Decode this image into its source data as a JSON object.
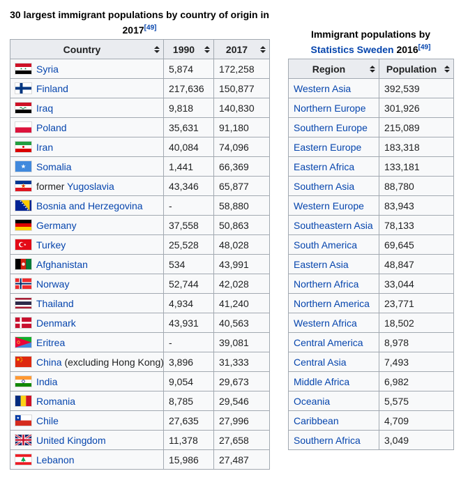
{
  "colors": {
    "link": "#0645ad",
    "text": "#202122",
    "table_border": "#a2a9b1",
    "header_bg": "#eaecf0",
    "cell_bg": "#f8f9fa",
    "page_bg": "#ffffff"
  },
  "left_table": {
    "caption_text": "30 largest immigrant populations by country of origin in 2017",
    "caption_ref": "[49]",
    "headers": [
      "Country",
      "1990",
      "2017"
    ],
    "rows": [
      {
        "flag": "syria",
        "prefix": "",
        "country": "Syria",
        "suffix": "",
        "y1990": "5,874",
        "y2017": "172,258"
      },
      {
        "flag": "finland",
        "prefix": "",
        "country": "Finland",
        "suffix": "",
        "y1990": "217,636",
        "y2017": "150,877"
      },
      {
        "flag": "iraq",
        "prefix": "",
        "country": "Iraq",
        "suffix": "",
        "y1990": "9,818",
        "y2017": "140,830"
      },
      {
        "flag": "poland",
        "prefix": "",
        "country": "Poland",
        "suffix": "",
        "y1990": "35,631",
        "y2017": "91,180"
      },
      {
        "flag": "iran",
        "prefix": "",
        "country": "Iran",
        "suffix": "",
        "y1990": "40,084",
        "y2017": "74,096"
      },
      {
        "flag": "somalia",
        "prefix": "",
        "country": "Somalia",
        "suffix": "",
        "y1990": "1,441",
        "y2017": "66,369"
      },
      {
        "flag": "yugoslavia",
        "prefix": "former ",
        "country": "Yugoslavia",
        "suffix": "",
        "y1990": "43,346",
        "y2017": "65,877"
      },
      {
        "flag": "bosnia",
        "prefix": "",
        "country": "Bosnia and Herzegovina",
        "suffix": "",
        "y1990": "-",
        "y2017": "58,880"
      },
      {
        "flag": "germany",
        "prefix": "",
        "country": "Germany",
        "suffix": "",
        "y1990": "37,558",
        "y2017": "50,863"
      },
      {
        "flag": "turkey",
        "prefix": "",
        "country": "Turkey",
        "suffix": "",
        "y1990": "25,528",
        "y2017": "48,028"
      },
      {
        "flag": "afghanistan",
        "prefix": "",
        "country": "Afghanistan",
        "suffix": "",
        "y1990": "534",
        "y2017": "43,991"
      },
      {
        "flag": "norway",
        "prefix": "",
        "country": "Norway",
        "suffix": "",
        "y1990": "52,744",
        "y2017": "42,028"
      },
      {
        "flag": "thailand",
        "prefix": "",
        "country": "Thailand",
        "suffix": "",
        "y1990": "4,934",
        "y2017": "41,240"
      },
      {
        "flag": "denmark",
        "prefix": "",
        "country": "Denmark",
        "suffix": "",
        "y1990": "43,931",
        "y2017": "40,563"
      },
      {
        "flag": "eritrea",
        "prefix": "",
        "country": "Eritrea",
        "suffix": "",
        "y1990": "-",
        "y2017": "39,081"
      },
      {
        "flag": "china",
        "prefix": "",
        "country": "China",
        "suffix": " (excluding Hong Kong)",
        "y1990": "3,896",
        "y2017": "31,333"
      },
      {
        "flag": "india",
        "prefix": "",
        "country": "India",
        "suffix": "",
        "y1990": "9,054",
        "y2017": "29,673"
      },
      {
        "flag": "romania",
        "prefix": "",
        "country": "Romania",
        "suffix": "",
        "y1990": "8,785",
        "y2017": "29,546"
      },
      {
        "flag": "chile",
        "prefix": "",
        "country": "Chile",
        "suffix": "",
        "y1990": "27,635",
        "y2017": "27,996"
      },
      {
        "flag": "uk",
        "prefix": "",
        "country": "United Kingdom",
        "suffix": "",
        "y1990": "11,378",
        "y2017": "27,658"
      },
      {
        "flag": "lebanon",
        "prefix": "",
        "country": "Lebanon",
        "suffix": "",
        "y1990": "15,986",
        "y2017": "27,487"
      }
    ]
  },
  "right_table": {
    "caption_prefix": "Immigrant populations by ",
    "caption_link": "Statistics Sweden",
    "caption_suffix": " 2016",
    "caption_ref": "[49]",
    "headers": [
      "Region",
      "Population"
    ],
    "rows": [
      {
        "region": "Western Asia",
        "population": "392,539"
      },
      {
        "region": "Northern Europe",
        "population": "301,926"
      },
      {
        "region": "Southern Europe",
        "population": "215,089"
      },
      {
        "region": "Eastern Europe",
        "population": "183,318"
      },
      {
        "region": "Eastern Africa",
        "population": "133,181"
      },
      {
        "region": "Southern Asia",
        "population": "88,780"
      },
      {
        "region": "Western Europe",
        "population": "83,943"
      },
      {
        "region": "Southeastern Asia",
        "population": "78,133"
      },
      {
        "region": "South America",
        "population": "69,645"
      },
      {
        "region": "Eastern Asia",
        "population": "48,847"
      },
      {
        "region": "Northern Africa",
        "population": "33,044"
      },
      {
        "region": "Northern America",
        "population": "23,771"
      },
      {
        "region": "Western Africa",
        "population": "18,502"
      },
      {
        "region": "Central America",
        "population": "8,978"
      },
      {
        "region": "Central Asia",
        "population": "7,493"
      },
      {
        "region": "Middle Africa",
        "population": "6,982"
      },
      {
        "region": "Oceania",
        "population": "5,575"
      },
      {
        "region": "Caribbean",
        "population": "4,709"
      },
      {
        "region": "Southern Africa",
        "population": "3,049"
      }
    ]
  }
}
